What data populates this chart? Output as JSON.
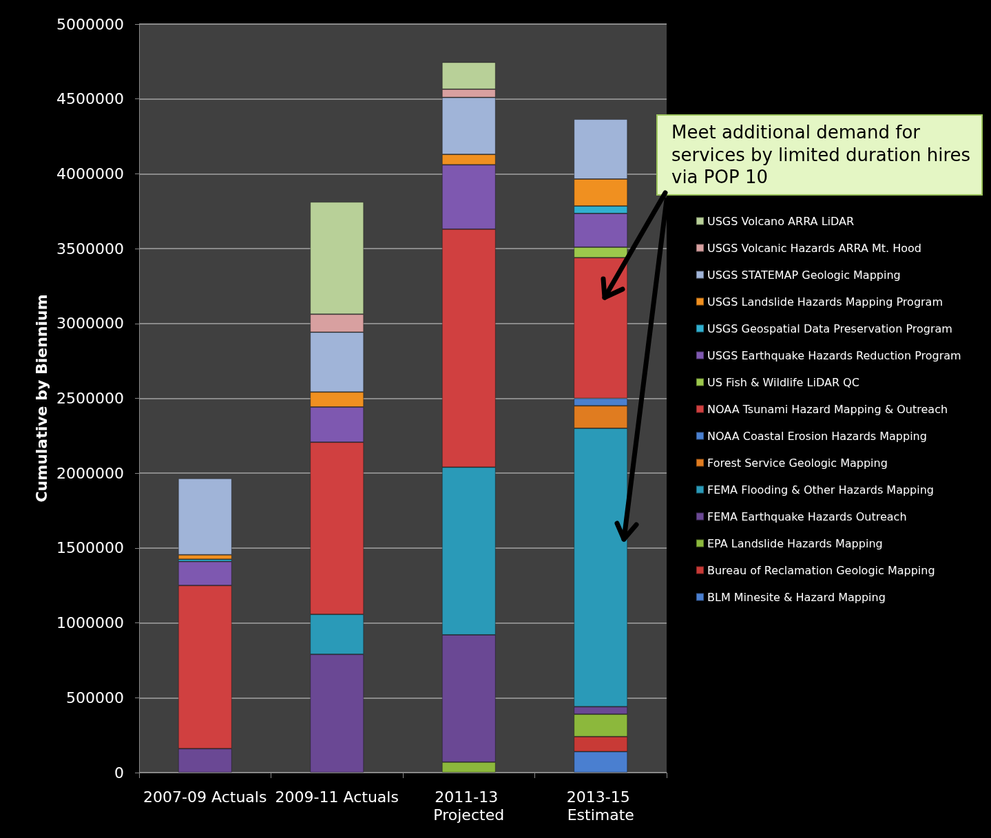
{
  "chart_data": {
    "type": "bar",
    "stacked": true,
    "ylabel": "Cumulative by Biennium",
    "categories": [
      "2007-09 Actuals",
      "2009-11 Actuals",
      "2011-13 Projected",
      "2013-15 Estimate"
    ],
    "ylim": [
      0,
      5000000
    ],
    "yticks": [
      0,
      500000,
      1000000,
      1500000,
      2000000,
      2500000,
      3000000,
      3500000,
      4000000,
      4500000,
      5000000
    ],
    "grid": "y",
    "legend": "right",
    "annotations": [
      "Meet additional demand for services by limited duration hires via POP 10"
    ],
    "series": [
      {
        "name": "BLM Minesite & Hazard Mapping",
        "color": "#4a7fd0",
        "values": [
          null,
          null,
          null,
          140000
        ]
      },
      {
        "name": "Bureau of Reclamation Geologic Mapping",
        "color": "#c83a36",
        "values": [
          null,
          null,
          null,
          100000
        ]
      },
      {
        "name": "EPA Landslide Hazards Mapping",
        "color": "#8cb83c",
        "values": [
          null,
          null,
          70000,
          150000
        ]
      },
      {
        "name": "FEMA Earthquake Hazards Outreach",
        "color": "#6a4894",
        "values": [
          160000,
          790000,
          850000,
          50000
        ]
      },
      {
        "name": "FEMA Flooding & Other Hazards Mapping",
        "color": "#2a9ab8",
        "values": [
          null,
          267000,
          1120000,
          1860000
        ]
      },
      {
        "name": "Forest Service Geologic Mapping",
        "color": "#e07c20",
        "values": [
          null,
          null,
          null,
          150000
        ]
      },
      {
        "name": "NOAA Coastal Erosion Hazards Mapping",
        "color": "#4a80d0",
        "values": [
          null,
          null,
          null,
          50000
        ]
      },
      {
        "name": "NOAA Tsunami Hazard Mapping & Outreach",
        "color": "#d04040",
        "values": [
          1090000,
          1150000,
          1590000,
          940000
        ]
      },
      {
        "name": "US Fish & Wildlife LiDAR QC",
        "color": "#9cc84c",
        "values": [
          null,
          null,
          null,
          70000
        ]
      },
      {
        "name": "USGS Earthquake Hazards Reduction Program",
        "color": "#7e58b0",
        "values": [
          160000,
          235000,
          430000,
          225000
        ]
      },
      {
        "name": "USGS Geospatial Data Preservation Program",
        "color": "#30b0d0",
        "values": [
          15000,
          null,
          null,
          50000
        ]
      },
      {
        "name": "USGS Landslide Hazards Mapping Program",
        "color": "#f09020",
        "values": [
          30000,
          100000,
          70000,
          180000
        ]
      },
      {
        "name": "USGS STATEMAP Geologic Mapping",
        "color": "#a0b4d8",
        "values": [
          510000,
          400000,
          380000,
          400000
        ]
      },
      {
        "name": "USGS Volcanic Hazards ARRA Mt. Hood",
        "color": "#d8a0a0",
        "values": [
          null,
          120000,
          55000,
          null
        ]
      },
      {
        "name": "USGS Volcano ARRA LiDAR",
        "color": "#b8d098",
        "values": [
          null,
          750000,
          180000,
          null
        ]
      }
    ]
  }
}
